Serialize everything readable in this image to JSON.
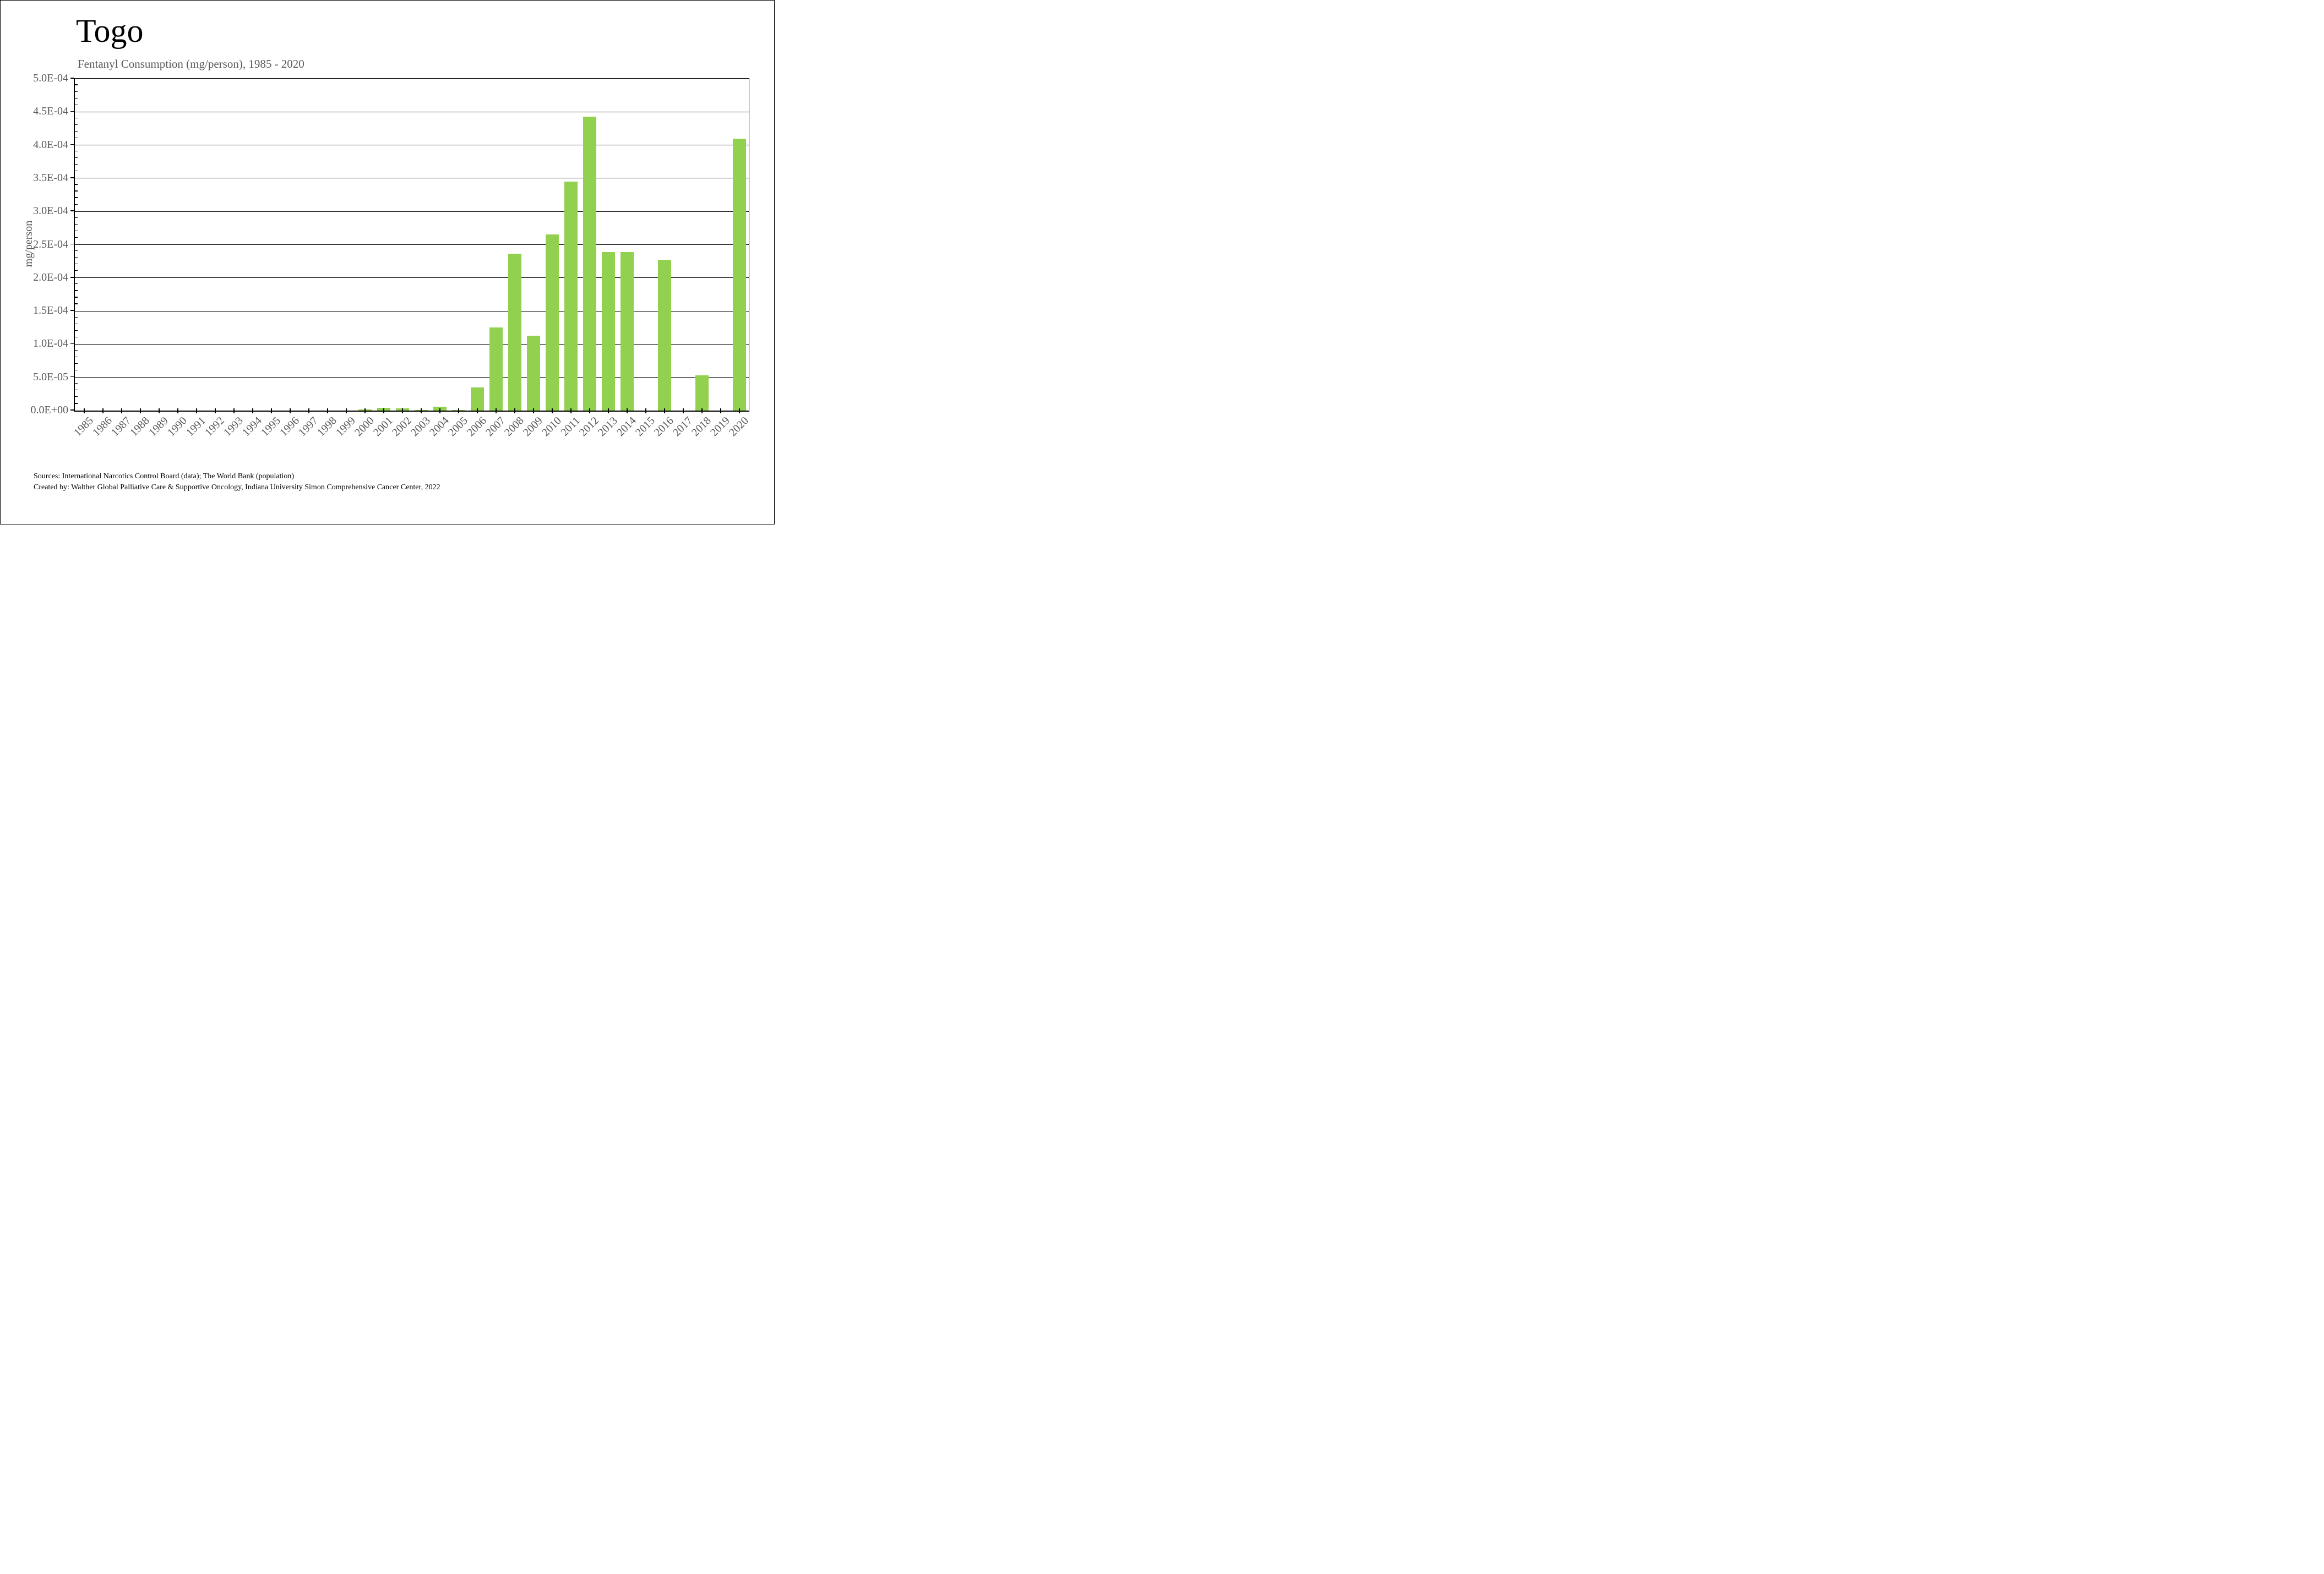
{
  "figure": {
    "title": "Togo",
    "subtitle": "Fentanyl Consumption (mg/person), 1985 - 2020",
    "y_axis_title": "mg/person",
    "footer_lines": [
      "Sources: International Narcotics Control Board (data); The World Bank (population)",
      "Created by: Walther Global Palliative Care & Supportive Oncology, Indiana University Simon Comprehensive Cancer Center, 2022"
    ]
  },
  "chart_data": {
    "type": "bar",
    "title": "Togo",
    "subtitle": "Fentanyl Consumption (mg/person), 1985 - 2020",
    "xlabel": "",
    "ylabel": "mg/person",
    "ylim": [
      0,
      0.0005
    ],
    "grid": "horizontal-major-on",
    "legend_position": "none",
    "bar_color": "#92D050",
    "axis_text_color": "#595959",
    "line_color": "#000000",
    "categories": [
      "1985",
      "1986",
      "1987",
      "1988",
      "1989",
      "1990",
      "1991",
      "1992",
      "1993",
      "1994",
      "1995",
      "1996",
      "1997",
      "1998",
      "1999",
      "2000",
      "2001",
      "2002",
      "2003",
      "2004",
      "2005",
      "2006",
      "2007",
      "2008",
      "2009",
      "2010",
      "2011",
      "2012",
      "2013",
      "2014",
      "2015",
      "2016",
      "2017",
      "2018",
      "2019",
      "2020"
    ],
    "values": [
      0,
      0,
      0,
      0,
      0,
      0,
      0,
      0,
      0,
      0,
      0,
      0,
      0,
      0,
      0,
      1.4e-06,
      3.9e-06,
      3.1e-06,
      1.1e-06,
      5.6e-06,
      7e-07,
      3.5e-05,
      0.000125,
      0.000236,
      0.000113,
      0.000265,
      0.000345,
      0.000443,
      0.000239,
      0.000239,
      0,
      0.000227,
      0,
      5.3e-05,
      0,
      0.00041
    ],
    "y_ticks": [
      {
        "value": 0.0,
        "label": "0.0E+00"
      },
      {
        "value": 5e-05,
        "label": "5.0E-05"
      },
      {
        "value": 0.0001,
        "label": "1.0E-04"
      },
      {
        "value": 0.00015,
        "label": "1.5E-04"
      },
      {
        "value": 0.0002,
        "label": "2.0E-04"
      },
      {
        "value": 0.00025,
        "label": "2.5E-04"
      },
      {
        "value": 0.0003,
        "label": "3.0E-04"
      },
      {
        "value": 0.00035,
        "label": "3.5E-04"
      },
      {
        "value": 0.0004,
        "label": "4.0E-04"
      },
      {
        "value": 0.00045,
        "label": "4.5E-04"
      },
      {
        "value": 0.0005,
        "label": "5.0E-04"
      }
    ],
    "y_minor_tick_step": 1e-05
  }
}
